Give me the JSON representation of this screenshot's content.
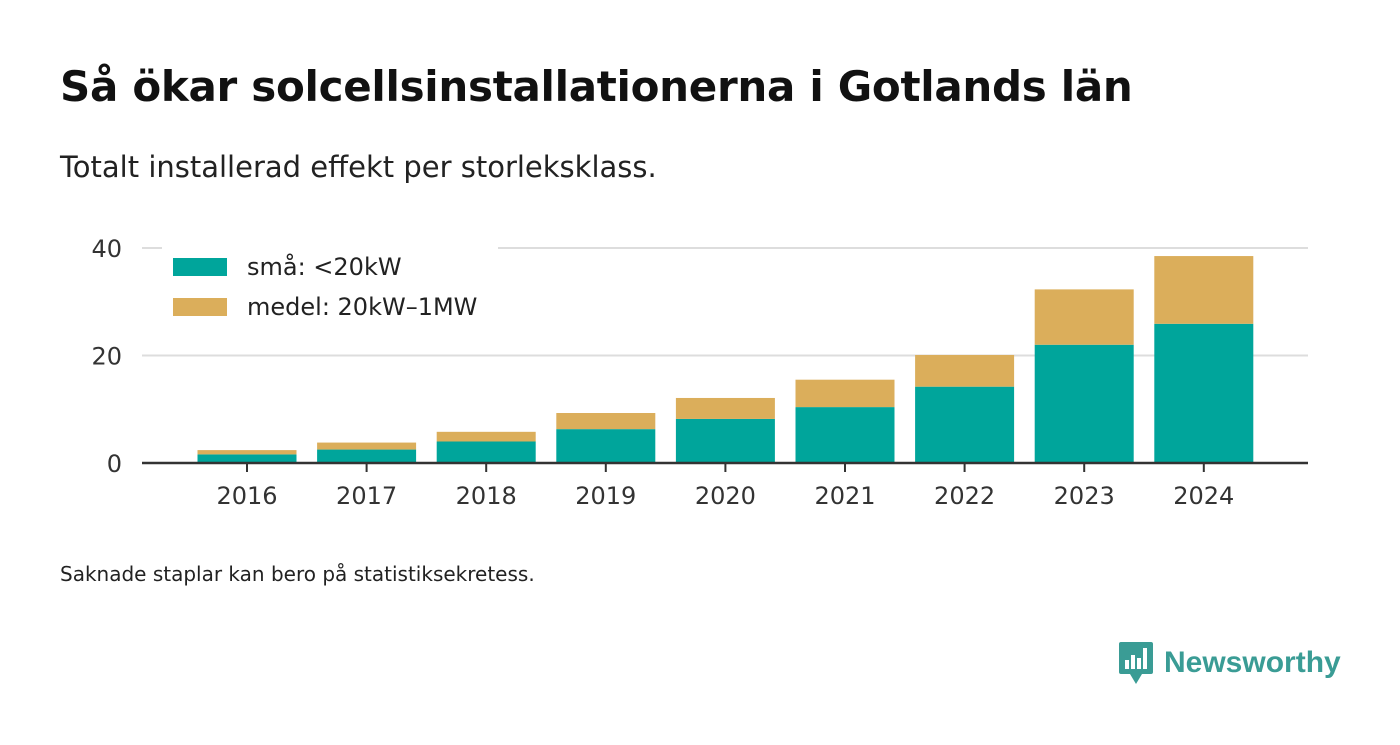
{
  "title": "Så ökar solcellsinstallationerna i Gotlands län",
  "subtitle": "Totalt installerad effekt per storleksklass.",
  "footnote": "Saknade staplar kan bero på statistiksekretess.",
  "brand": "Newsworthy",
  "colors": {
    "small": "#00a59b",
    "medium": "#dbae5b",
    "grid": "#dddddd",
    "axis": "#333333",
    "brand": "#3a9c95"
  },
  "chart_data": {
    "type": "bar",
    "stacked": true,
    "categories": [
      "2016",
      "2017",
      "2018",
      "2019",
      "2020",
      "2021",
      "2022",
      "2023",
      "2024"
    ],
    "series": [
      {
        "name": "små: <20kW",
        "values": [
          1.6,
          2.5,
          4.0,
          6.3,
          8.2,
          10.4,
          14.2,
          22.0,
          25.9
        ]
      },
      {
        "name": "medel: 20kW–1MW",
        "values": [
          0.8,
          1.3,
          1.8,
          3.0,
          3.9,
          5.1,
          5.9,
          10.3,
          12.6
        ]
      }
    ],
    "ylim": [
      0,
      40
    ],
    "yticks": [
      0,
      20,
      40
    ],
    "grid": true,
    "legend_position": "top-left"
  }
}
